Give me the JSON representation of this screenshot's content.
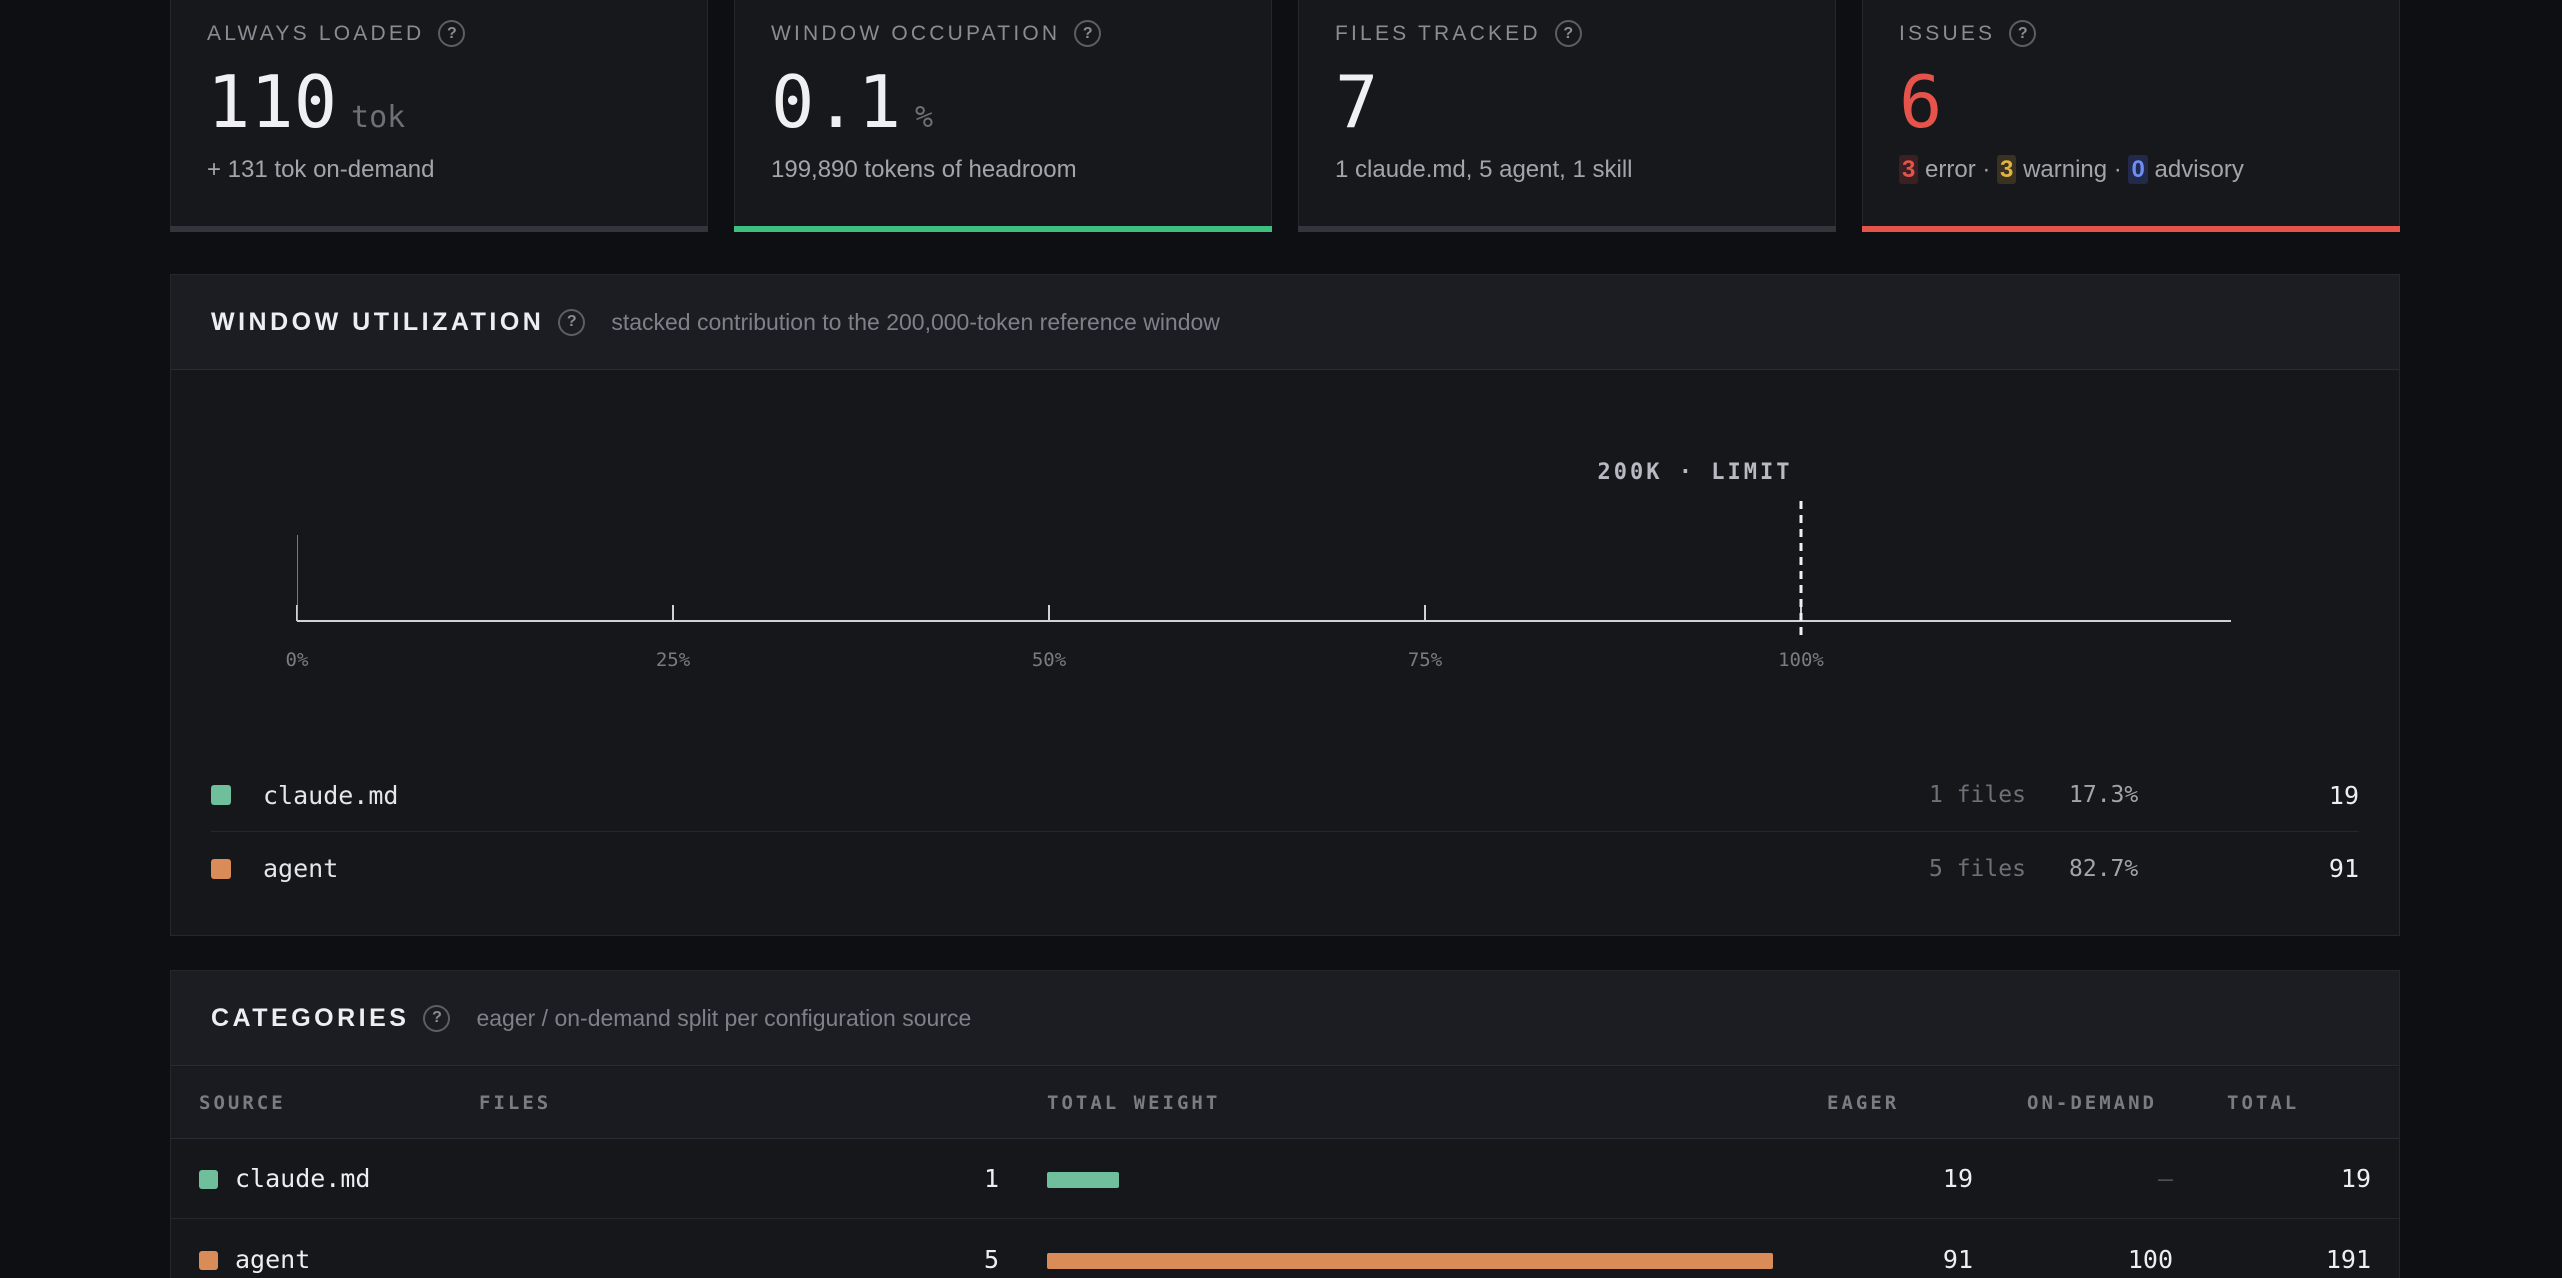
{
  "colors": {
    "claude_md": "#6fbf9c",
    "agent": "#d98b58",
    "green": "#3fbf7f",
    "red": "#e5534b",
    "yellow": "#e3b341",
    "blue": "#6e8df5"
  },
  "stats": {
    "always_loaded": {
      "label": "ALWAYS LOADED",
      "value": "110",
      "unit": "tok",
      "sub": "+ 131 tok on-demand"
    },
    "window_occupation": {
      "label": "WINDOW OCCUPATION",
      "value": "0.1",
      "unit": "%",
      "sub": "199,890 tokens of headroom"
    },
    "files_tracked": {
      "label": "FILES TRACKED",
      "value": "7",
      "sub": "1 claude.md, 5 agent, 1 skill"
    },
    "issues": {
      "label": "ISSUES",
      "value": "6",
      "error_count": "3",
      "error_label": "error",
      "warning_count": "3",
      "warning_label": "warning",
      "advisory_count": "0",
      "advisory_label": "advisory",
      "sep": "·"
    }
  },
  "utilization": {
    "title": "WINDOW UTILIZATION",
    "desc": "stacked contribution to the 200,000-token reference window",
    "limit_label": "200K · LIMIT",
    "ticks": [
      "0%",
      "25%",
      "50%",
      "75%",
      "100%"
    ],
    "legend": [
      {
        "name": "claude.md",
        "files": "1 files",
        "pct": "17.3%",
        "tokens": "19"
      },
      {
        "name": "agent",
        "files": "5 files",
        "pct": "82.7%",
        "tokens": "91"
      }
    ]
  },
  "chart_data": {
    "type": "bar",
    "title": "WINDOW UTILIZATION",
    "categories": [
      "claude.md",
      "agent"
    ],
    "values": [
      19,
      91
    ],
    "x_ticks": [
      "0%",
      "25%",
      "50%",
      "75%",
      "100%"
    ],
    "limit": 200000,
    "xlim": [
      0,
      128
    ]
  },
  "categories": {
    "title": "CATEGORIES",
    "desc": "eager / on-demand split per configuration source",
    "columns": {
      "source": "SOURCE",
      "files": "FILES",
      "weight": "TOTAL WEIGHT",
      "eager": "EAGER",
      "ondemand": "ON-DEMAND",
      "total": "TOTAL"
    },
    "max_total": 191,
    "rows": [
      {
        "source": "claude.md",
        "files": "1",
        "eager": "19",
        "ondemand": "—",
        "total": "19",
        "total_value": 19
      },
      {
        "source": "agent",
        "files": "5",
        "eager": "91",
        "ondemand": "100",
        "total": "191",
        "total_value": 191
      }
    ]
  }
}
